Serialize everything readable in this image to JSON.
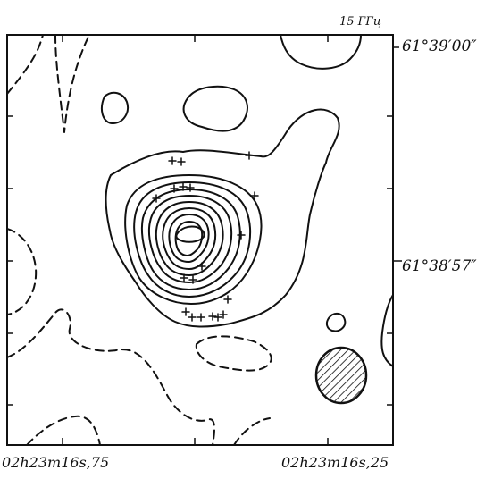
{
  "figure": {
    "frequency_label": "15 ГГц",
    "declination_labels": [
      "61°39′00″",
      "61°38′57″"
    ],
    "right_ascension_labels": [
      "02h23m16s,75",
      "02h23m16s,25"
    ],
    "beam": "hatched ellipse",
    "colors": {
      "ink": "#111111",
      "background": "#ffffff"
    }
  }
}
